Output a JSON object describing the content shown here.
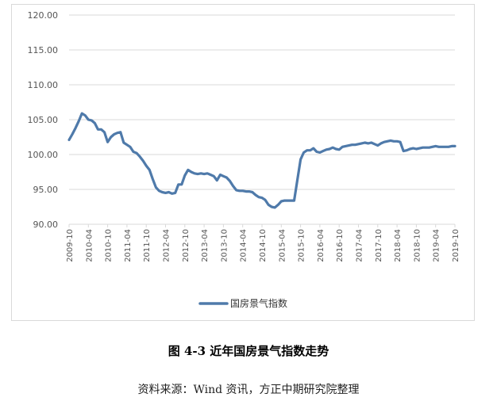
{
  "colors": {
    "series": "#4f7aaa",
    "grid": "#d9d9d9",
    "axis_text": "#555555"
  },
  "chart_data": {
    "type": "line",
    "title": "",
    "xlabel": "",
    "ylabel": "",
    "ylim": [
      90,
      120
    ],
    "y_ticks": [
      "90.00",
      "95.00",
      "100.00",
      "105.00",
      "110.00",
      "115.00",
      "120.00"
    ],
    "x_ticks": [
      "2009-10",
      "2010-04",
      "2010-10",
      "2011-04",
      "2011-10",
      "2012-04",
      "2012-10",
      "2013-04",
      "2013-10",
      "2014-04",
      "2014-10",
      "2015-04",
      "2015-10",
      "2016-04",
      "2016-10",
      "2017-04",
      "2017-10",
      "2018-04",
      "2018-10",
      "2019-04",
      "2019-10"
    ],
    "grid": "horizontal",
    "legend_position": "bottom",
    "series": [
      {
        "name": "国房景气指数",
        "x": [
          "2009-10",
          "2009-11",
          "2009-12",
          "2010-01",
          "2010-02",
          "2010-03",
          "2010-04",
          "2010-05",
          "2010-06",
          "2010-07",
          "2010-08",
          "2010-09",
          "2010-10",
          "2010-11",
          "2010-12",
          "2011-01",
          "2011-02",
          "2011-03",
          "2011-04",
          "2011-05",
          "2011-06",
          "2011-07",
          "2011-08",
          "2011-09",
          "2011-10",
          "2011-11",
          "2011-12",
          "2012-01",
          "2012-02",
          "2012-03",
          "2012-04",
          "2012-05",
          "2012-06",
          "2012-07",
          "2012-08",
          "2012-09",
          "2012-10",
          "2012-11",
          "2012-12",
          "2013-01",
          "2013-02",
          "2013-03",
          "2013-04",
          "2013-05",
          "2013-06",
          "2013-07",
          "2013-08",
          "2013-09",
          "2013-10",
          "2013-11",
          "2013-12",
          "2014-01",
          "2014-02",
          "2014-03",
          "2014-04",
          "2014-05",
          "2014-06",
          "2014-07",
          "2014-08",
          "2014-09",
          "2014-10",
          "2014-11",
          "2014-12",
          "2015-01",
          "2015-02",
          "2015-03",
          "2015-04",
          "2015-05",
          "2015-06",
          "2015-07",
          "2015-08",
          "2015-09",
          "2015-10",
          "2015-11",
          "2015-12",
          "2016-01",
          "2016-02",
          "2016-03",
          "2016-04",
          "2016-05",
          "2016-06",
          "2016-07",
          "2016-08",
          "2016-09",
          "2016-10",
          "2016-11",
          "2016-12",
          "2017-01",
          "2017-02",
          "2017-03",
          "2017-04",
          "2017-05",
          "2017-06",
          "2017-07",
          "2017-08",
          "2017-09",
          "2017-10",
          "2017-11",
          "2017-12",
          "2018-01",
          "2018-02",
          "2018-03",
          "2018-04",
          "2018-05",
          "2018-06",
          "2018-07",
          "2018-08",
          "2018-09",
          "2018-10",
          "2018-11",
          "2018-12",
          "2019-01",
          "2019-02",
          "2019-03",
          "2019-04",
          "2019-05",
          "2019-06",
          "2019-07",
          "2019-08",
          "2019-09",
          "2019-10"
        ],
        "values": [
          102.1,
          102.9,
          103.8,
          104.8,
          105.9,
          105.6,
          105.0,
          104.9,
          104.5,
          103.6,
          103.6,
          103.2,
          101.8,
          102.5,
          102.9,
          103.1,
          103.2,
          101.7,
          101.4,
          101.1,
          100.4,
          100.2,
          99.7,
          99.1,
          98.4,
          97.8,
          96.5,
          95.3,
          94.8,
          94.6,
          94.5,
          94.6,
          94.4,
          94.5,
          95.7,
          95.7,
          97.0,
          97.8,
          97.5,
          97.3,
          97.2,
          97.3,
          97.2,
          97.3,
          97.1,
          96.9,
          96.3,
          97.1,
          96.9,
          96.7,
          96.2,
          95.5,
          94.9,
          94.8,
          94.8,
          94.7,
          94.7,
          94.6,
          94.2,
          93.9,
          93.8,
          93.5,
          92.8,
          92.5,
          92.4,
          92.8,
          93.3,
          93.4,
          93.4,
          93.4,
          93.4,
          96.4,
          99.3,
          100.3,
          100.6,
          100.6,
          100.9,
          100.4,
          100.3,
          100.5,
          100.7,
          100.8,
          101.0,
          100.8,
          100.7,
          101.1,
          101.2,
          101.3,
          101.4,
          101.4,
          101.5,
          101.6,
          101.7,
          101.6,
          101.7,
          101.5,
          101.3,
          101.6,
          101.8,
          101.9,
          102.0,
          101.9,
          101.9,
          101.8,
          100.5,
          100.6,
          100.8,
          100.9,
          100.8,
          100.9,
          101.0,
          101.0,
          101.0,
          101.1,
          101.2,
          101.1,
          101.1,
          101.1,
          101.1,
          101.2,
          101.2
        ]
      }
    ]
  },
  "caption": {
    "title": "图 4-3  近年国房景气指数走势",
    "source": "资料来源：Wind 资讯，方正中期研究院整理"
  }
}
